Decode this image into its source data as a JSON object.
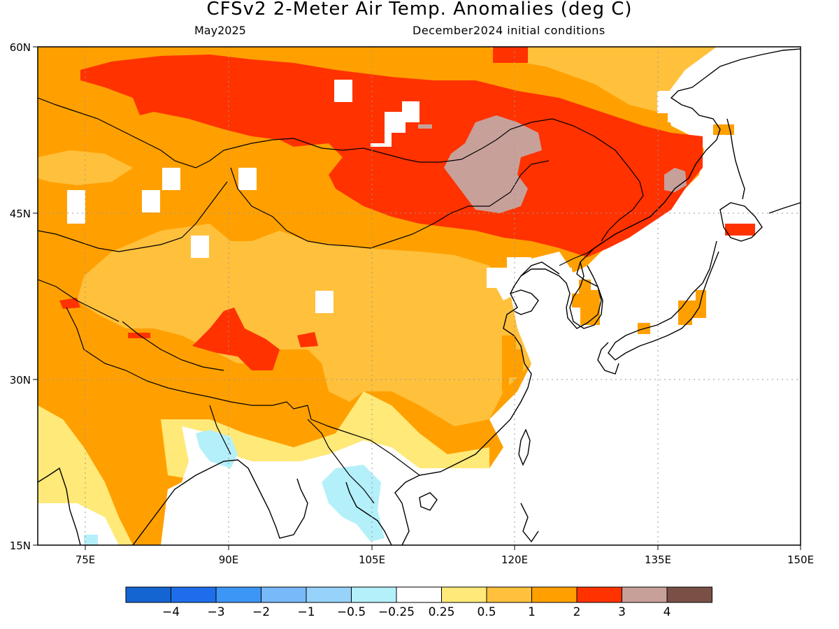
{
  "map": {
    "title": "CFSv2 2-Meter Air Temp. Anomalies (deg C)",
    "target_month": "May2025",
    "initial_conditions": "December2024 initial conditions",
    "lat_labels": [
      "60N",
      "45N",
      "30N",
      "15N"
    ],
    "lon_labels": [
      "75E",
      "90E",
      "105E",
      "120E",
      "135E",
      "150E"
    ],
    "bounds": {
      "lon_min": 70,
      "lon_max": 150,
      "lat_min": 15,
      "lat_max": 60
    },
    "colors": {
      "lt_neg4": "#1464d2",
      "neg4_neg3": "#1e6eeb",
      "neg3_neg2": "#3c96f5",
      "neg2_neg1": "#78b9fa",
      "neg1_neg05": "#96d2fa",
      "neg05_neg025": "#b4f0fa",
      "neutral": "#ffffff",
      "p025_p05": "#ffe978",
      "p05_p1": "#ffc03c",
      "p1_p2": "#ffa000",
      "p2_p3": "#ff3200",
      "p3_p4": "#c8a09a",
      "gt_p4": "#7a5046"
    }
  },
  "legend": {
    "labels": [
      "-4",
      "-3",
      "-2",
      "-1",
      "-0.5",
      "-0.25",
      "0.25",
      "0.5",
      "1",
      "2",
      "3",
      "4"
    ],
    "colors": [
      "#1464d2",
      "#1e6eeb",
      "#3c96f5",
      "#78b9fa",
      "#96d2fa",
      "#b4f0fa",
      "#ffffff",
      "#ffe978",
      "#ffc03c",
      "#ffa000",
      "#ff3200",
      "#c8a09a",
      "#7a5046"
    ]
  }
}
